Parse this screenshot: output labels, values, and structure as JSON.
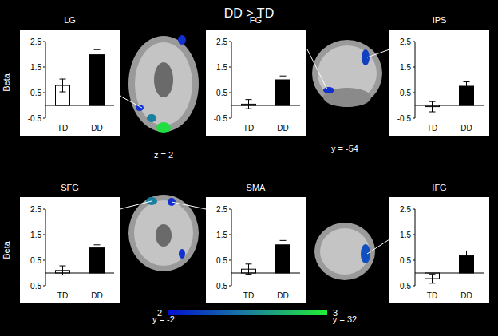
{
  "figure": {
    "title": "DD > TD",
    "slice_labels": [
      "z = 2",
      "y = -54",
      "y = -2",
      "y = 32"
    ],
    "colorbar": {
      "range": [
        2,
        3
      ],
      "ticks": [
        2,
        3
      ]
    }
  },
  "chart_data": [
    {
      "type": "bar",
      "title": "LG",
      "y_label": "Beta",
      "categories": [
        "TD",
        "DD"
      ],
      "values": [
        0.78,
        1.98
      ],
      "errors": [
        0.25,
        0.2
      ],
      "colors": [
        "#ffffff",
        "#000000"
      ],
      "ylim": [
        -0.5,
        2.5
      ],
      "yticks": [
        -0.5,
        0.5,
        1.5,
        2.5
      ]
    },
    {
      "type": "bar",
      "title": "FG",
      "categories": [
        "TD",
        "DD"
      ],
      "values": [
        0.05,
        1.0
      ],
      "errors": [
        0.18,
        0.15
      ],
      "colors": [
        "#ffffff",
        "#000000"
      ],
      "ylim": [
        -0.5,
        2.5
      ],
      "yticks": [
        -0.5,
        0.5,
        1.5,
        2.5
      ]
    },
    {
      "type": "bar",
      "title": "IPS",
      "categories": [
        "TD",
        "DD"
      ],
      "values": [
        -0.05,
        0.75
      ],
      "errors": [
        0.2,
        0.17
      ],
      "colors": [
        "#ffffff",
        "#000000"
      ],
      "ylim": [
        -0.5,
        2.5
      ],
      "yticks": [
        -0.5,
        0.5,
        1.5,
        2.5
      ]
    },
    {
      "type": "bar",
      "title": "SFG",
      "y_label": "Beta",
      "categories": [
        "TD",
        "DD"
      ],
      "values": [
        0.1,
        0.98
      ],
      "errors": [
        0.18,
        0.12
      ],
      "colors": [
        "#ffffff",
        "#000000"
      ],
      "ylim": [
        -0.5,
        2.5
      ],
      "yticks": [
        -0.5,
        0.5,
        1.5,
        2.5
      ]
    },
    {
      "type": "bar",
      "title": "SMA",
      "categories": [
        "TD",
        "DD"
      ],
      "values": [
        0.15,
        1.1
      ],
      "errors": [
        0.2,
        0.17
      ],
      "colors": [
        "#ffffff",
        "#000000"
      ],
      "ylim": [
        -0.5,
        2.5
      ],
      "yticks": [
        -0.5,
        0.5,
        1.5,
        2.5
      ]
    },
    {
      "type": "bar",
      "title": "IFG",
      "categories": [
        "TD",
        "DD"
      ],
      "values": [
        -0.22,
        0.68
      ],
      "errors": [
        0.18,
        0.18
      ],
      "colors": [
        "#ffffff",
        "#000000"
      ],
      "ylim": [
        -0.5,
        2.5
      ],
      "yticks": [
        -0.5,
        0.5,
        1.5,
        2.5
      ]
    }
  ]
}
